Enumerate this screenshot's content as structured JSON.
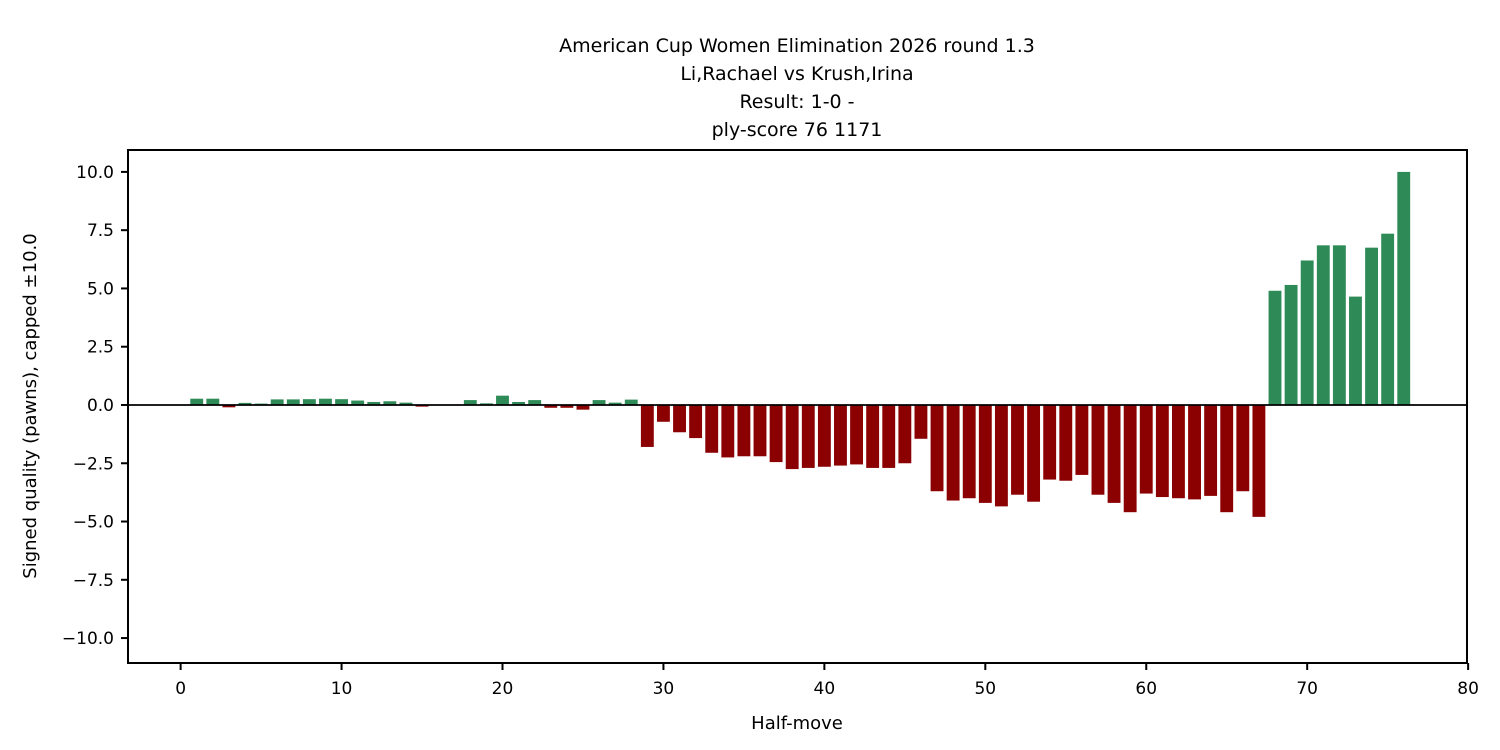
{
  "figure": {
    "background": "#ffffff"
  },
  "chart_data": {
    "type": "bar",
    "title_lines": [
      "American Cup Women Elimination 2026  round 1.3",
      "Li,Rachael vs Krush,Irina",
      "Result: 1-0 -",
      "ply-score 76 1171"
    ],
    "xlabel": "Half-move",
    "ylabel": "Signed quality (pawns), capped ±10.0",
    "x_start": 1,
    "values": [
      0.27,
      0.27,
      -0.1,
      0.09,
      0.06,
      0.24,
      0.24,
      0.25,
      0.27,
      0.25,
      0.19,
      0.13,
      0.16,
      0.1,
      -0.07,
      0.02,
      0.02,
      0.21,
      0.07,
      0.4,
      0.13,
      0.21,
      -0.12,
      -0.12,
      -0.2,
      0.21,
      0.1,
      0.23,
      -1.8,
      -0.72,
      -1.17,
      -1.42,
      -2.05,
      -2.25,
      -2.2,
      -2.2,
      -2.45,
      -2.75,
      -2.7,
      -2.65,
      -2.6,
      -2.55,
      -2.7,
      -2.7,
      -2.5,
      -1.45,
      -3.7,
      -4.1,
      -4.0,
      -4.2,
      -4.35,
      -3.85,
      -4.15,
      -3.2,
      -3.25,
      -3.0,
      -3.85,
      -4.2,
      -4.6,
      -3.8,
      -3.95,
      -4.0,
      -4.05,
      -3.9,
      -4.6,
      -3.7,
      -4.8,
      4.9,
      5.15,
      6.2,
      6.85,
      6.85,
      4.65,
      6.75,
      7.35,
      10.0
    ],
    "bar_width_fraction": 0.8,
    "colors": {
      "positive": "#2e8b57",
      "negative": "#8b0000",
      "axis": "#000000"
    },
    "xlim": [
      -3.27,
      79.93
    ],
    "ylim": [
      -11.07,
      10.94
    ],
    "xticks": [
      0,
      10,
      20,
      30,
      40,
      50,
      60,
      70,
      80
    ],
    "yticks": [
      10.0,
      7.5,
      5.0,
      2.5,
      0.0,
      -2.5,
      -5.0,
      -7.5,
      -10.0
    ],
    "grid": false,
    "legend": null
  }
}
